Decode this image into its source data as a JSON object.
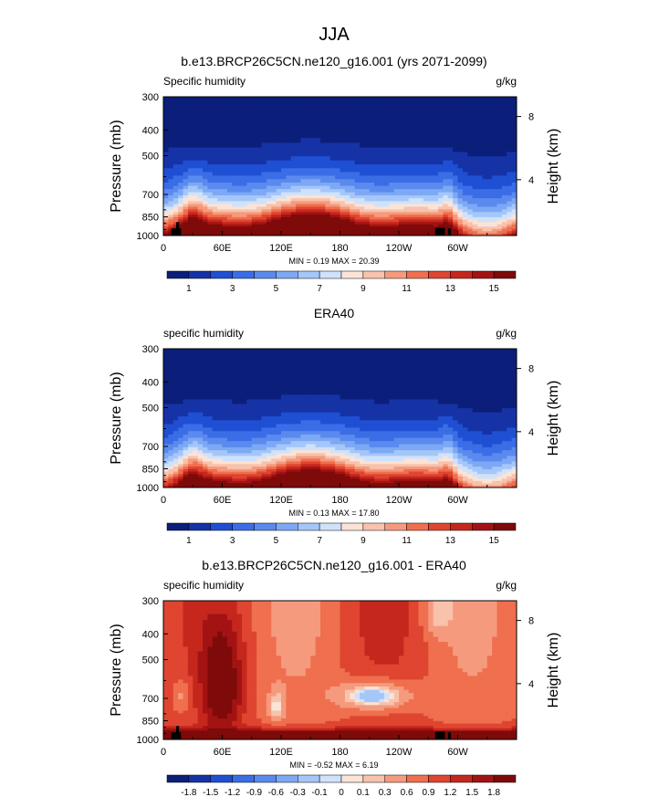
{
  "figure": {
    "title": "JJA"
  },
  "chart_data": [
    {
      "type": "heatmap",
      "title": "b.e13.BRCP26C5CN.ne120_g16.001 (yrs 2071-2099)",
      "left_label": "Specific humidity",
      "units": "g/kg",
      "ylabel": "Pressure (mb)",
      "right_label": "Height (km)",
      "xticks": [
        "0",
        "60E",
        "120E",
        "180",
        "120W",
        "60W"
      ],
      "xtick_values": [
        0,
        60,
        120,
        180,
        240,
        300
      ],
      "xlim": [
        0,
        360
      ],
      "yticks": [
        "300",
        "400",
        "500",
        "700",
        "850",
        "1000"
      ],
      "ytick_values": [
        300,
        400,
        500,
        700,
        850,
        1000
      ],
      "ylim": [
        300,
        1000
      ],
      "right_ticks": [
        "8",
        "4"
      ],
      "right_tick_pressures": [
        356,
        616
      ],
      "min_max_text": "MIN =   0.19   MAX =  20.39",
      "field": "moist",
      "colorbar": {
        "labels": [
          "1",
          "3",
          "5",
          "7",
          "9",
          "11",
          "13",
          "15"
        ],
        "levels": [
          1,
          2,
          3,
          4,
          5,
          6,
          7,
          8,
          9,
          10,
          11,
          12,
          13,
          14,
          15,
          16
        ],
        "colors": [
          "#0b1f7a",
          "#1633a6",
          "#1f4fd2",
          "#3a6de6",
          "#5a8aee",
          "#7da8f4",
          "#a5c6f8",
          "#cfe2fb",
          "#fbe3d6",
          "#f8c2ac",
          "#f59a7d",
          "#ef6f4e",
          "#df4530",
          "#c5271d",
          "#a31313",
          "#7e0a0a"
        ]
      },
      "terrain": true
    },
    {
      "type": "heatmap",
      "title": "ERA40",
      "left_label": "specific humidity",
      "units": "g/kg",
      "ylabel": "Pressure (mb)",
      "right_label": "Height (km)",
      "xticks": [
        "0",
        "60E",
        "120E",
        "180",
        "120W",
        "60W"
      ],
      "xtick_values": [
        0,
        60,
        120,
        180,
        240,
        300
      ],
      "xlim": [
        0,
        360
      ],
      "yticks": [
        "300",
        "400",
        "500",
        "700",
        "850",
        "1000"
      ],
      "ytick_values": [
        300,
        400,
        500,
        700,
        850,
        1000
      ],
      "ylim": [
        300,
        1000
      ],
      "right_ticks": [
        "8",
        "4"
      ],
      "right_tick_pressures": [
        356,
        616
      ],
      "min_max_text": "MIN =   0.13   MAX =  17.80",
      "field": "moist",
      "colorbar": {
        "labels": [
          "1",
          "3",
          "5",
          "7",
          "9",
          "11",
          "13",
          "15"
        ],
        "levels": [
          1,
          2,
          3,
          4,
          5,
          6,
          7,
          8,
          9,
          10,
          11,
          12,
          13,
          14,
          15,
          16
        ],
        "colors": [
          "#0b1f7a",
          "#1633a6",
          "#1f4fd2",
          "#3a6de6",
          "#5a8aee",
          "#7da8f4",
          "#a5c6f8",
          "#cfe2fb",
          "#fbe3d6",
          "#f8c2ac",
          "#f59a7d",
          "#ef6f4e",
          "#df4530",
          "#c5271d",
          "#a31313",
          "#7e0a0a"
        ]
      },
      "terrain": false
    },
    {
      "type": "heatmap",
      "title": "b.e13.BRCP26C5CN.ne120_g16.001 - ERA40",
      "left_label": "specific humidity",
      "units": "g/kg",
      "ylabel": "Pressure (mb)",
      "right_label": "Height (km)",
      "xticks": [
        "0",
        "60E",
        "120E",
        "180",
        "120W",
        "60W"
      ],
      "xtick_values": [
        0,
        60,
        120,
        180,
        240,
        300
      ],
      "xlim": [
        0,
        360
      ],
      "yticks": [
        "300",
        "400",
        "500",
        "700",
        "850",
        "1000"
      ],
      "ytick_values": [
        300,
        400,
        500,
        700,
        850,
        1000
      ],
      "ylim": [
        300,
        1000
      ],
      "right_ticks": [
        "8",
        "4"
      ],
      "right_tick_pressures": [
        356,
        616
      ],
      "min_max_text": "MIN =  -0.52   MAX =   6.19",
      "field": "diff",
      "colorbar": {
        "labels": [
          "-1.8",
          "-1.5",
          "-1.2",
          "-0.9",
          "-0.6",
          "-0.3",
          "-0.1",
          "0",
          "0.1",
          "0.3",
          "0.6",
          "0.9",
          "1.2",
          "1.5",
          "1.8"
        ],
        "levels": [
          -1.8,
          -1.5,
          -1.2,
          -0.9,
          -0.6,
          -0.3,
          -0.1,
          0,
          0.1,
          0.3,
          0.6,
          0.9,
          1.2,
          1.5,
          1.8
        ],
        "colors": [
          "#0b1f7a",
          "#1633a6",
          "#1f4fd2",
          "#3a6de6",
          "#5a8aee",
          "#7da8f4",
          "#a5c6f8",
          "#cfe2fb",
          "#fbe3d6",
          "#f8c2ac",
          "#f59a7d",
          "#ef6f4e",
          "#df4530",
          "#c5271d",
          "#a31313",
          "#7e0a0a"
        ]
      },
      "terrain": true
    }
  ]
}
